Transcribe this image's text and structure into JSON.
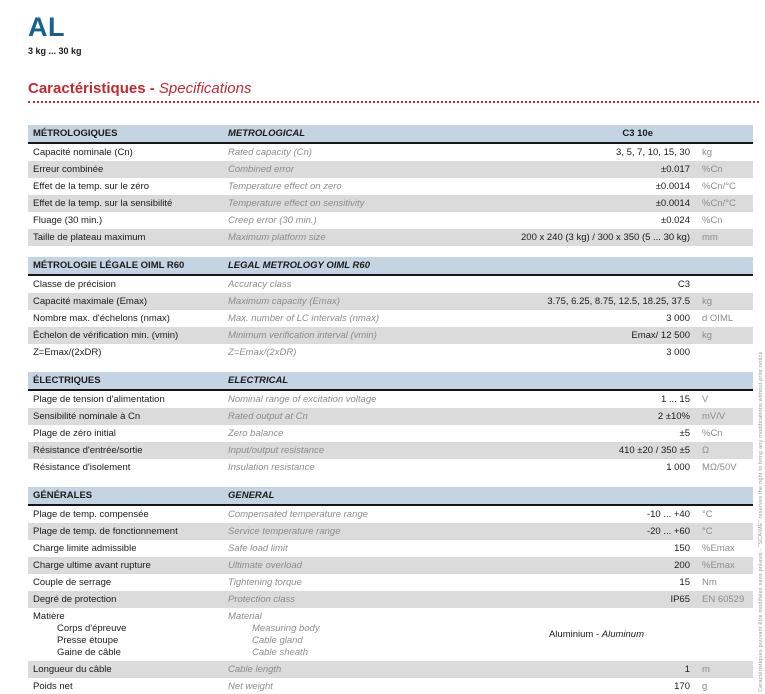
{
  "header": {
    "model": "AL",
    "range": "3 kg ... 30 kg",
    "title_fr": "Caractéristiques",
    "title_sep": " - ",
    "title_en": "Specifications"
  },
  "footer": {
    "disclaimer": "Caractéristiques pouvant être modifiées sans préavis - \"SCAIME\" reserves the right to bring any modifications without prior notice"
  },
  "colors": {
    "accent_blue": "#16618E",
    "accent_red": "#C22A31",
    "section_header_bg": "#C5D4E3",
    "row_alt_bg": "#DBDBDB",
    "muted_text": "#8C8C8C"
  },
  "table": {
    "sections": [
      {
        "header_fr": "MÉTROLOGIQUES",
        "header_en": "METROLOGICAL",
        "header_value": "C3 10e",
        "rows": [
          {
            "fr": "Capacité nominale (Cn)",
            "en": "Rated capacity (Cn)",
            "value": "3, 5, 7, 10, 15, 30",
            "unit": "kg"
          },
          {
            "fr": "Erreur combinée",
            "en": "Combined error",
            "value": "±0.017",
            "unit": "%Cn"
          },
          {
            "fr": "Effet de la temp. sur le zéro",
            "en": "Temperature effect on zero",
            "value": "±0.0014",
            "unit": "%Cn/°C"
          },
          {
            "fr": "Effet de la temp. sur la sensibilité",
            "en": "Temperature effect on sensitivity",
            "value": "±0.0014",
            "unit": "%Cn/°C"
          },
          {
            "fr": "Fluage (30 min.)",
            "en": "Creep error (30 min.)",
            "value": "±0.024",
            "unit": "%Cn"
          },
          {
            "fr": "Taille de plateau maximum",
            "en": "Maximum platform size",
            "value": "200 x 240 (3 kg) / 300 x 350 (5 ... 30 kg)",
            "unit": "mm"
          }
        ]
      },
      {
        "header_fr": "MÉTROLOGIE LÉGALE OIML R60",
        "header_en": "LEGAL METROLOGY OIML R60",
        "header_value": "",
        "rows": [
          {
            "fr": "Classe de précision",
            "en": "Accuracy class",
            "value": "C3",
            "unit": ""
          },
          {
            "fr": "Capacité maximale (Emax)",
            "en": "Maximum capacity (Emax)",
            "value": "3.75, 6.25, 8.75, 12.5, 18.25, 37.5",
            "unit": "kg"
          },
          {
            "fr": "Nombre max. d'échelons (nmax)",
            "en": "Max. number of LC intervals (nmax)",
            "value": "3 000",
            "unit": "d OIML"
          },
          {
            "fr": "Échelon de vérification min. (vmin)",
            "en": "Minimum verification interval (vmin)",
            "value": "Emax/ 12 500",
            "unit": "kg"
          },
          {
            "fr": "Z=Emax/(2xDR)",
            "en": "Z=Emax/(2xDR)",
            "value": "3 000",
            "unit": ""
          }
        ]
      },
      {
        "header_fr": "ÉLECTRIQUES",
        "header_en": "ELECTRICAL",
        "header_value": "",
        "rows": [
          {
            "fr": "Plage de tension d'alimentation",
            "en": "Nominal range of excitation voltage",
            "value": "1 ... 15",
            "unit": "V"
          },
          {
            "fr": "Sensibilité nominale à Cn",
            "en": "Rated output at Cn",
            "value": "2 ±10%",
            "unit": "mV/V"
          },
          {
            "fr": "Plage de zéro initial",
            "en": "Zero balance",
            "value": "±5",
            "unit": "%Cn"
          },
          {
            "fr": "Résistance d'entrée/sortie",
            "en": "Input/output resistance",
            "value": "410 ±20 / 350 ±5",
            "unit": "Ω"
          },
          {
            "fr": "Résistance d'isolement",
            "en": "Insulation resistance",
            "value": "1 000",
            "unit": "MΩ/50V"
          }
        ]
      },
      {
        "header_fr": "GÉNÉRALES",
        "header_en": "GENERAL",
        "header_value": "",
        "rows": [
          {
            "fr": "Plage de temp. compensée",
            "en": "Compensated temperature range",
            "value": "-10 ... +40",
            "unit": "°C"
          },
          {
            "fr": "Plage de temp. de fonctionnement",
            "en": "Service temperature range",
            "value": "-20 ... +60",
            "unit": "°C"
          },
          {
            "fr": "Charge limite admissible",
            "en": "Safe load limit",
            "value": "150",
            "unit": "%Emax"
          },
          {
            "fr": "Charge ultime avant rupture",
            "en": "Ultimate overload",
            "value": "200",
            "unit": "%Emax"
          },
          {
            "fr": "Couple de serrage",
            "en": "Tightening torque",
            "value": "15",
            "unit": "Nm"
          },
          {
            "fr": "Degré de protection",
            "en": "Protection class",
            "value": "IP65",
            "unit": "EN 60529"
          },
          {
            "fr": "Matière",
            "fr_sub": [
              "Corps d'épreuve",
              "Presse étoupe",
              "Gaine de câble"
            ],
            "en": "Material",
            "en_sub": [
              "Measuring body",
              "Cable gland",
              "Cable sheath"
            ],
            "value": "Aluminium - ",
            "value_italic": "Aluminum",
            "unit": "",
            "multiline": true
          },
          {
            "fr": "Longueur du câble",
            "en": "Cable length",
            "value": "1",
            "unit": "m"
          },
          {
            "fr": "Poids net",
            "en": "Net weight",
            "value": "170",
            "unit": "g"
          }
        ]
      }
    ]
  }
}
